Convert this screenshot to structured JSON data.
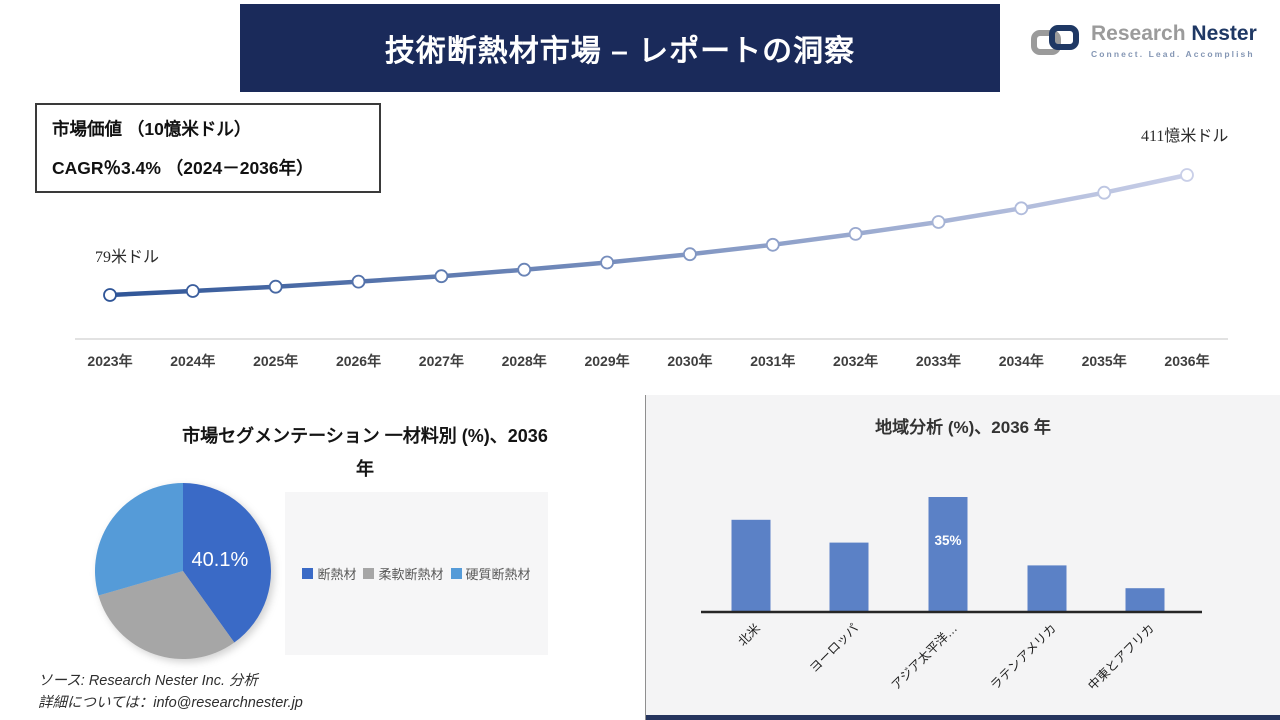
{
  "header": {
    "title": "技術断熱材市場 – レポートの洞察"
  },
  "logo": {
    "name_part1": "Research",
    "name_part2": "Nester",
    "tagline": "Connect. Lead. Accomplish",
    "icon": "chain-links-icon",
    "colors": {
      "navy": "#1F3864",
      "gray": "#9B9B9B",
      "tagline": "#8496B4"
    }
  },
  "market_box": {
    "line1": "市場価値 （10憶米ドル）",
    "line2": "CAGR％3.4% （2024－2036年）"
  },
  "theme": {
    "banner_bg": "#1A2A5A",
    "panel_bg": "#F4F4F5",
    "legend_panel_bg": "#F6F6F7"
  },
  "chart_data": [
    {
      "id": "market-trend",
      "type": "line",
      "x": [
        "2023年",
        "2024年",
        "2025年",
        "2026年",
        "2027年",
        "2028年",
        "2029年",
        "2030年",
        "2031年",
        "2032年",
        "2033年",
        "2034年",
        "2035年",
        "2036年"
      ],
      "values": [
        79,
        90,
        102,
        116,
        131,
        149,
        169,
        192,
        218,
        248,
        281,
        319,
        362,
        411
      ],
      "start_label": "79米ドル",
      "end_label": "411憶米ドル",
      "line_color_start": "#2F5597",
      "line_color_end": "#C9CFE8",
      "markers": "white-circles",
      "axis_line_color": "#D9D9D9",
      "grid": "off",
      "y_axis": "hidden"
    },
    {
      "id": "segmentation-pie",
      "type": "pie",
      "title": "市場セグメンテーション 一材料別 (%)、2036 年",
      "title_lines": [
        "市場セグメンテーション 一材料別 (%)、2036",
        "年"
      ],
      "slices": [
        {
          "label": "断熱材",
          "value": 40.1,
          "color": "#3A6AC6",
          "data_label": "40.1%"
        },
        {
          "label": "柔軟断熱材",
          "value": 30.4,
          "color": "#A6A6A6",
          "data_label": ""
        },
        {
          "label": "硬質断熱材",
          "value": 29.5,
          "color": "#559BD8",
          "data_label": ""
        }
      ],
      "legend_position": "right",
      "data_label_color": "#ffffff"
    },
    {
      "id": "regional-bar",
      "type": "bar",
      "title": "地域分析 (%)、2036 年",
      "categories": [
        "北米",
        "ヨーロッパ",
        "アジア太平洋…",
        "ラテンアメリカ",
        "中東とアフリカ"
      ],
      "values": [
        28,
        21,
        35,
        14,
        7
      ],
      "data_labels": [
        "",
        "",
        "35%",
        "",
        ""
      ],
      "bar_color": "#5B81C6",
      "axis_color": "#262626",
      "label_rotation_deg": -45,
      "y_axis": "hidden",
      "grid": "off"
    }
  ],
  "source": {
    "line1": "ソース: Research Nester Inc. 分析",
    "line2": "詳細については：info@researchnester.jp"
  }
}
